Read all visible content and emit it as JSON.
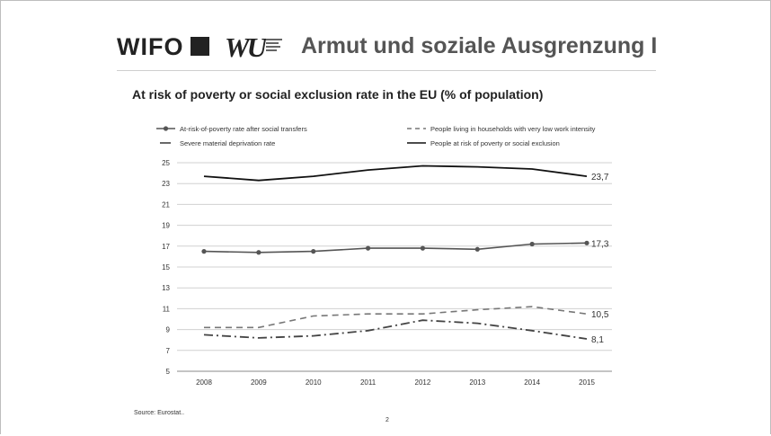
{
  "header": {
    "logo_left_text": "WIFO",
    "logo_right_text": "WU",
    "slide_title": "Armut und soziale Ausgrenzung I"
  },
  "chart_title": "At risk of poverty or social exclusion rate in the EU (% of population)",
  "source": "Source: Eurostat..",
  "page_number": "2",
  "chart_data": {
    "type": "line",
    "title": "At risk of poverty or social exclusion rate in the EU (% of population)",
    "categories": [
      "2008",
      "2009",
      "2010",
      "2011",
      "2012",
      "2013",
      "2014",
      "2015"
    ],
    "ylim": [
      5,
      25
    ],
    "yticks": [
      "5",
      "7",
      "9",
      "11",
      "13",
      "15",
      "17",
      "19",
      "21",
      "23",
      "25"
    ],
    "grid": true,
    "legend_position": "top",
    "series": [
      {
        "name": "At-risk-of-poverty rate after social transfers",
        "values": [
          16.5,
          16.4,
          16.5,
          16.8,
          16.8,
          16.7,
          17.2,
          17.3
        ],
        "end_label": "17,3",
        "style": "solid-markers",
        "color": "#555555"
      },
      {
        "name": "People living in households with very low work intensity",
        "values": [
          9.2,
          9.2,
          10.3,
          10.5,
          10.5,
          10.9,
          11.2,
          10.5
        ],
        "end_label": "10,5",
        "style": "dashed",
        "color": "#777777"
      },
      {
        "name": "Severe material deprivation rate",
        "values": [
          8.5,
          8.2,
          8.4,
          8.9,
          9.9,
          9.6,
          8.9,
          8.1
        ],
        "end_label": "8,1",
        "style": "dash-dot",
        "color": "#444444"
      },
      {
        "name": "People at risk of poverty or social exclusion",
        "values": [
          23.7,
          23.3,
          23.7,
          24.3,
          24.7,
          24.6,
          24.4,
          23.7
        ],
        "end_label": "23,7",
        "style": "solid",
        "color": "#111111"
      }
    ]
  }
}
